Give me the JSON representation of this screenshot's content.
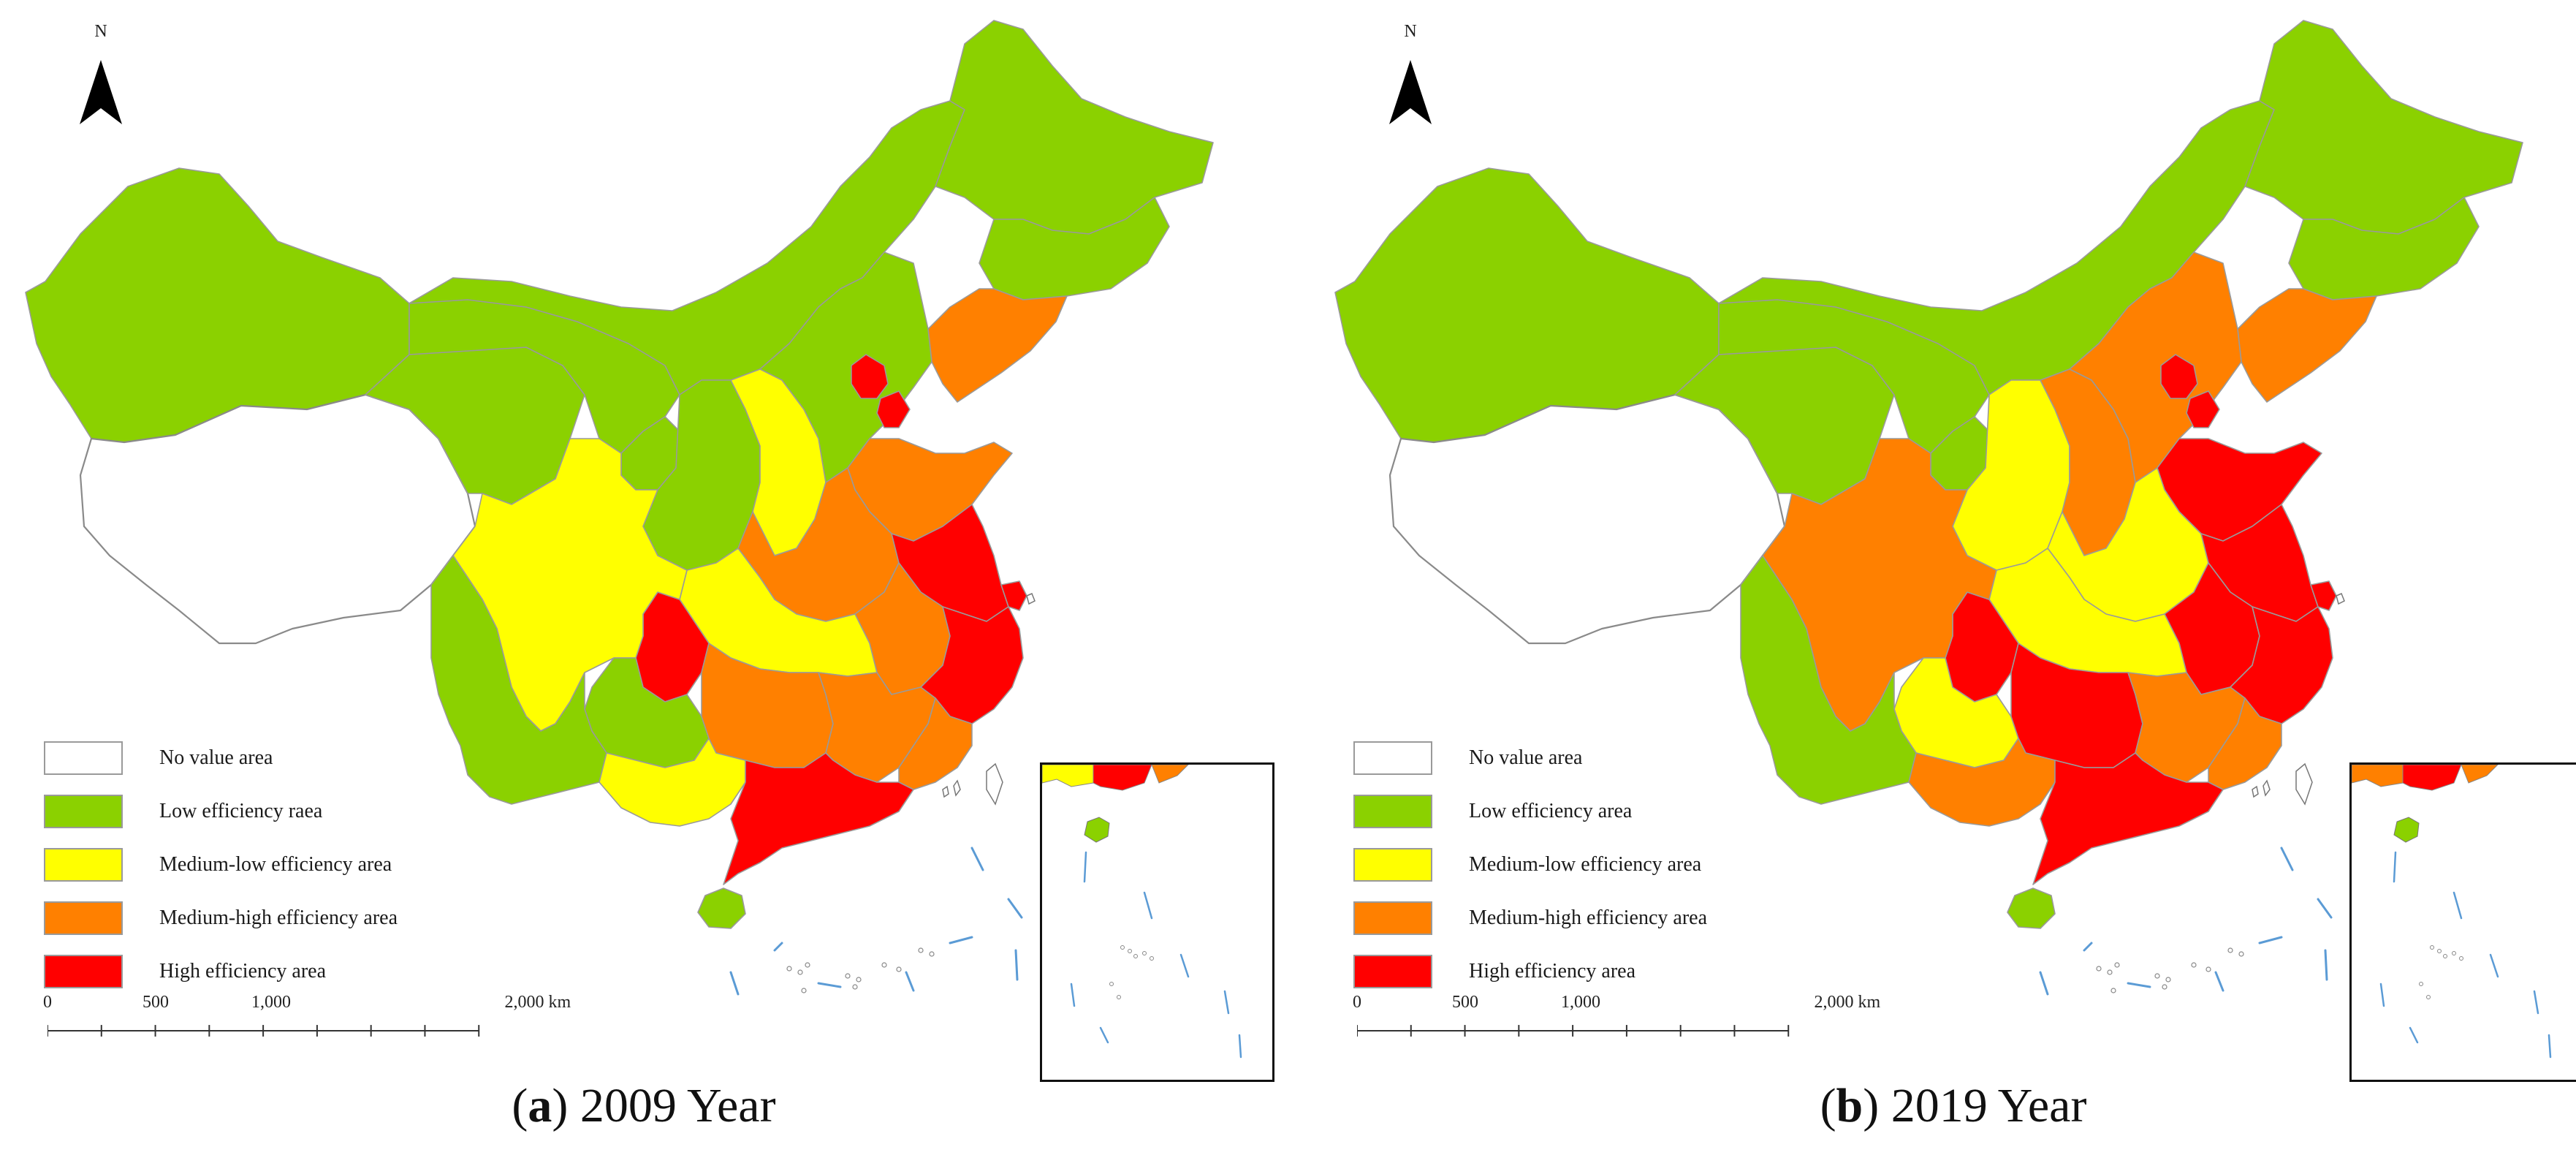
{
  "colors": {
    "no_value": "#ffffff",
    "low": "#8bd100",
    "medium_low": "#ffff00",
    "medium_high": "#ff8000",
    "high": "#ff0000",
    "boundary": "#9a9a9a",
    "sea_line": "#5b9bd5"
  },
  "north_label": "N",
  "scale_labels": [
    "0",
    "500",
    "1,000",
    "2,000 km"
  ],
  "panels": [
    {
      "id": "a",
      "caption_letter": "a",
      "caption_text": " 2009 Year",
      "legend": [
        {
          "label": "No value area",
          "class": "no_value"
        },
        {
          "label": "Low efficiency raea",
          "class": "low"
        },
        {
          "label": "Medium-low efficiency area",
          "class": "medium_low"
        },
        {
          "label": "Medium-high efficiency area",
          "class": "medium_high"
        },
        {
          "label": "High efficiency area",
          "class": "high"
        }
      ],
      "regions": {
        "tibet": "no_value",
        "xinjiang": "low",
        "qinghai": "low",
        "gansu": "low",
        "inner_mongolia": "low",
        "heilongjiang": "low",
        "jilin": "low",
        "ningxia": "low",
        "shaanxi": "low",
        "liaoning": "medium_high",
        "beijing": "high",
        "tianjin": "high",
        "hebei": "low",
        "shanxi": "medium_low",
        "shandong": "medium_high",
        "henan": "medium_high",
        "jiangsu": "high",
        "anhui": "medium_high",
        "shanghai": "high",
        "zhejiang": "high",
        "hubei": "medium_low",
        "chongqing": "high",
        "sichuan": "medium_low",
        "guizhou": "low",
        "yunnan": "low",
        "hunan": "medium_high",
        "jiangxi": "medium_high",
        "fujian": "medium_high",
        "guangxi": "medium_low",
        "guangdong": "high",
        "hainan": "low"
      }
    },
    {
      "id": "b",
      "caption_letter": "b",
      "caption_text": " 2019 Year",
      "legend": [
        {
          "label": "No value area",
          "class": "no_value"
        },
        {
          "label": "Low efficiency area",
          "class": "low"
        },
        {
          "label": "Medium-low efficiency area",
          "class": "medium_low"
        },
        {
          "label": "Medium-high efficiency area",
          "class": "medium_high"
        },
        {
          "label": "High efficiency area",
          "class": "high"
        }
      ],
      "regions": {
        "tibet": "no_value",
        "xinjiang": "low",
        "qinghai": "low",
        "gansu": "low",
        "inner_mongolia": "low",
        "heilongjiang": "low",
        "jilin": "low",
        "ningxia": "low",
        "shaanxi": "medium_low",
        "liaoning": "medium_high",
        "beijing": "high",
        "tianjin": "high",
        "hebei": "medium_high",
        "shanxi": "medium_high",
        "shandong": "high",
        "henan": "medium_low",
        "jiangsu": "high",
        "anhui": "high",
        "shanghai": "high",
        "zhejiang": "high",
        "hubei": "medium_low",
        "chongqing": "high",
        "sichuan": "medium_high",
        "guizhou": "medium_low",
        "yunnan": "low",
        "hunan": "high",
        "jiangxi": "medium_high",
        "fujian": "medium_high",
        "guangxi": "medium_high",
        "guangdong": "high",
        "hainan": "low"
      }
    }
  ]
}
